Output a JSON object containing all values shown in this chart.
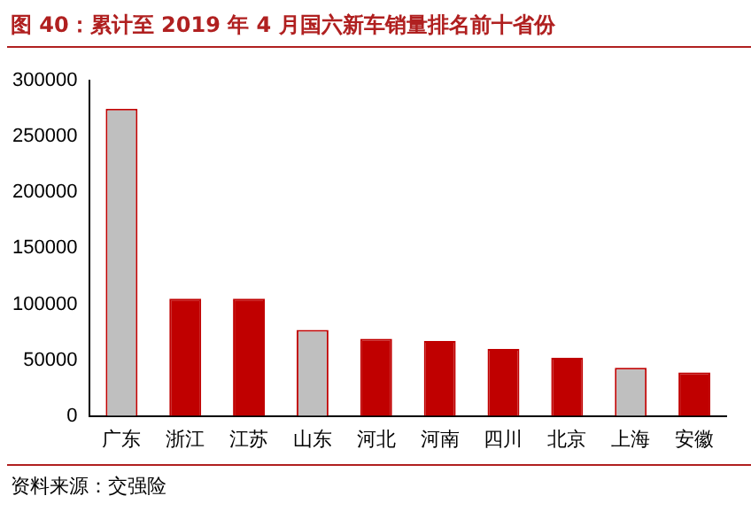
{
  "chart_data": {
    "type": "bar",
    "title": "图 40：累计至 2019 年 4 月国六新车销量排名前十省份",
    "categories": [
      "广东",
      "浙江",
      "江苏",
      "山东",
      "河北",
      "河南",
      "四川",
      "北京",
      "上海",
      "安徽"
    ],
    "values": [
      275000,
      105000,
      105000,
      77000,
      69000,
      67000,
      60000,
      52000,
      43000,
      39000
    ],
    "colors": [
      "#bfbfbf",
      "#c00000",
      "#c00000",
      "#bfbfbf",
      "#c00000",
      "#c00000",
      "#c00000",
      "#c00000",
      "#bfbfbf",
      "#c00000"
    ],
    "ylim": [
      0,
      300000
    ],
    "yticks": [
      0,
      50000,
      100000,
      150000,
      200000,
      250000,
      300000
    ],
    "grid": false,
    "legend": false,
    "annotations": [
      "资料来源：交强险"
    ]
  }
}
